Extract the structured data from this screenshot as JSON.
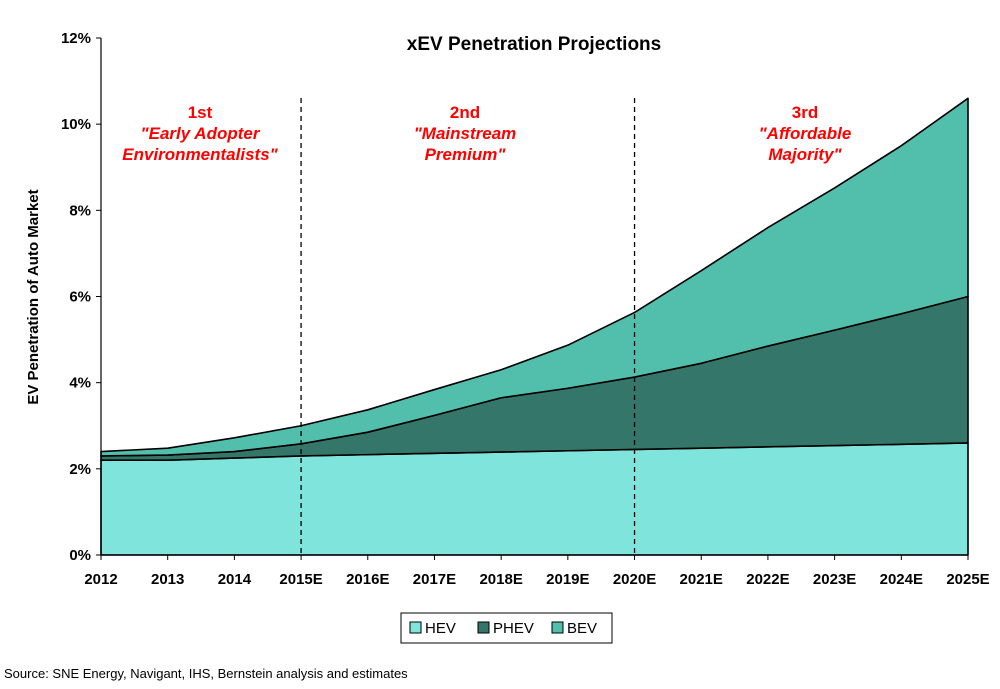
{
  "chart_data": {
    "type": "area",
    "stacked": true,
    "title": "xEV Penetration Projections",
    "ylabel": "EV Penetration of Auto Market",
    "xlabel": "",
    "categories": [
      "2012",
      "2013",
      "2014",
      "2015E",
      "2016E",
      "2017E",
      "2018E",
      "2019E",
      "2020E",
      "2021E",
      "2022E",
      "2023E",
      "2024E",
      "2025E"
    ],
    "ylim": [
      0,
      12
    ],
    "yticks": [
      "0%",
      "2%",
      "4%",
      "6%",
      "8%",
      "10%",
      "12%"
    ],
    "series": [
      {
        "name": "HEV",
        "color": "#7fe5dc",
        "values": [
          2.2,
          2.2,
          2.25,
          2.3,
          2.33,
          2.36,
          2.39,
          2.42,
          2.45,
          2.48,
          2.51,
          2.54,
          2.57,
          2.6
        ]
      },
      {
        "name": "PHEV",
        "color": "#35766a",
        "values": [
          0.1,
          0.12,
          0.15,
          0.28,
          0.52,
          0.88,
          1.26,
          1.45,
          1.68,
          1.97,
          2.34,
          2.68,
          3.03,
          3.4
        ]
      },
      {
        "name": "BEV",
        "color": "#52bfac",
        "values": [
          0.1,
          0.16,
          0.32,
          0.42,
          0.52,
          0.6,
          0.65,
          1.0,
          1.5,
          2.15,
          2.75,
          3.3,
          3.9,
          4.6
        ]
      }
    ],
    "dividers_after": [
      "2015E",
      "2020E"
    ],
    "phases": [
      {
        "num": "1st",
        "line1": "\"Early Adopter",
        "line2": "Environmentalists\""
      },
      {
        "num": "2nd",
        "line1": "\"Mainstream",
        "line2": "Premium\""
      },
      {
        "num": "3rd",
        "line1": "\"Affordable",
        "line2": "Majority\""
      }
    ],
    "legend_position": "bottom",
    "grid": false
  },
  "source": "Source: SNE Energy, Navigant, IHS, Bernstein analysis and estimates"
}
